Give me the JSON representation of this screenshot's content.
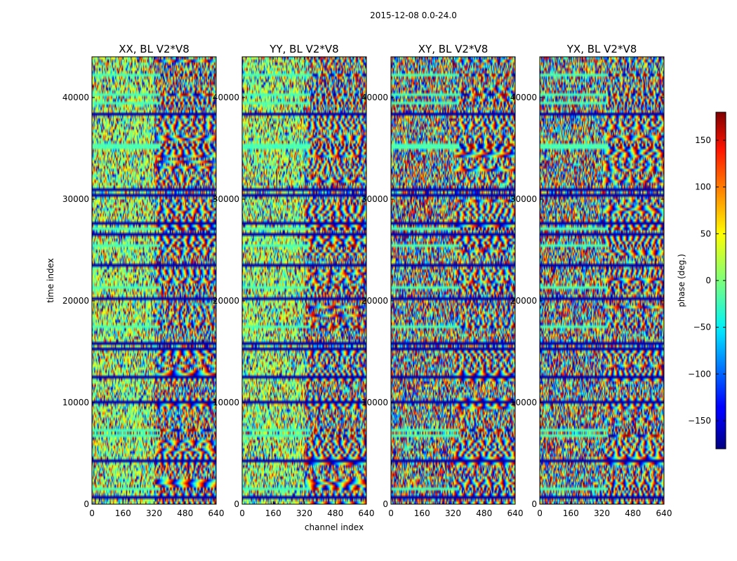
{
  "chart_data": {
    "type": "heatmap",
    "title": "2015-12-08 0.0-24.0",
    "xlabel": "channel index",
    "ylabel": "time index",
    "xlim": [
      0,
      640
    ],
    "ylim": [
      0,
      44000
    ],
    "x_ticks": [
      0,
      160,
      320,
      480,
      640
    ],
    "y_ticks": [
      0,
      10000,
      20000,
      30000,
      40000
    ],
    "panels": [
      {
        "title": "XX, BL V2*V8",
        "x_tick_labels": [
          "0",
          "160",
          "320",
          "480",
          "640"
        ],
        "y_tick_labels": [
          "0",
          "10000",
          "20000",
          "30000",
          "40000"
        ]
      },
      {
        "title": "YY, BL V2*V8",
        "x_tick_labels": [
          "0",
          "160",
          "320",
          "480",
          "640"
        ],
        "y_tick_labels": [
          "0",
          "10000",
          "20000",
          "30000",
          "40000"
        ]
      },
      {
        "title": "XY, BL V2*V8",
        "x_tick_labels": [
          "0",
          "160",
          "320",
          "480",
          "640"
        ],
        "y_tick_labels": [
          "0",
          "10000",
          "20000",
          "30000",
          "40000"
        ]
      },
      {
        "title": "YX, BL V2*V8",
        "x_tick_labels": [
          "0",
          "160",
          "320",
          "480",
          "640"
        ],
        "y_tick_labels": [
          "0",
          "10000",
          "20000",
          "30000",
          "40000"
        ]
      }
    ],
    "colorbar": {
      "label": "phase (deg.)",
      "range": [
        -180,
        180
      ],
      "ticks": [
        150,
        100,
        50,
        0,
        -50,
        -100,
        -150
      ],
      "tick_labels": [
        "150",
        "100",
        "50",
        "0",
        "−50",
        "−100",
        "−150"
      ],
      "colormap": "jet"
    }
  }
}
